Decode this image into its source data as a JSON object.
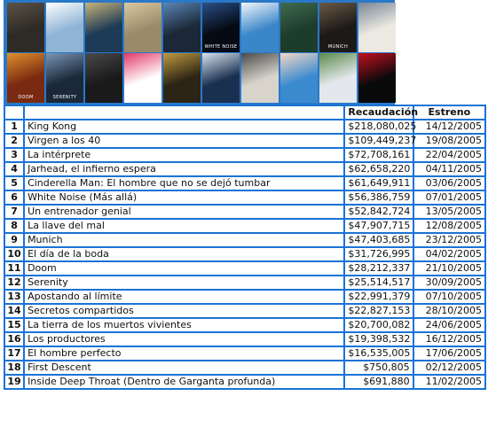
{
  "posters": [
    {
      "color": "#2e2b26",
      "accent": "#5c5246",
      "text": ""
    },
    {
      "color": "#8fb4d6",
      "accent": "#ffffff",
      "text": ""
    },
    {
      "color": "#1d3a56",
      "accent": "#c7b47a",
      "text": ""
    },
    {
      "color": "#9a8a6a",
      "accent": "#d9c9a0",
      "text": ""
    },
    {
      "color": "#1c2838",
      "accent": "#5a86b4",
      "text": ""
    },
    {
      "color": "#050a14",
      "accent": "#2b4f86",
      "text": "WHITE NOISE"
    },
    {
      "color": "#3a86c8",
      "accent": "#f2f6fa",
      "text": ""
    },
    {
      "color": "#1d3d2c",
      "accent": "#3f6a4e",
      "text": ""
    },
    {
      "color": "#1c1a18",
      "accent": "#6a5a46",
      "text": "MUNICH"
    },
    {
      "color": "#ece9e2",
      "accent": "#7a8696",
      "text": ""
    },
    {
      "color": "#7a2a10",
      "accent": "#e0902c",
      "text": "DOOM"
    },
    {
      "color": "#1a2838",
      "accent": "#7a96b8",
      "text": "SERENITY"
    },
    {
      "color": "#1a1a1a",
      "accent": "#4a4a4a",
      "text": ""
    },
    {
      "color": "#ffffff",
      "accent": "#e23a6a",
      "text": ""
    },
    {
      "color": "#2c2414",
      "accent": "#c09a40",
      "text": ""
    },
    {
      "color": "#1a3050",
      "accent": "#d8e2ee",
      "text": ""
    },
    {
      "color": "#d8d4cc",
      "accent": "#4a4a4a",
      "text": ""
    },
    {
      "color": "#3a8ad0",
      "accent": "#f4d8c8",
      "text": ""
    },
    {
      "color": "#e4e8ec",
      "accent": "#5a8a4a",
      "text": ""
    },
    {
      "color": "#0a0a0a",
      "accent": "#c21020",
      "text": ""
    }
  ],
  "table": {
    "headers": {
      "num": "",
      "title": "",
      "gross": "Recaudación",
      "release": "Estreno"
    },
    "rows": [
      {
        "num": "1",
        "title": "King Kong",
        "gross": "$218,080,025",
        "release": "14/12/2005"
      },
      {
        "num": "2",
        "title": "Virgen a los 40",
        "gross": "$109,449,237",
        "release": "19/08/2005"
      },
      {
        "num": "3",
        "title": "La intérprete",
        "gross": "$72,708,161",
        "release": "22/04/2005"
      },
      {
        "num": "4",
        "title": "Jarhead, el infierno espera",
        "gross": "$62,658,220",
        "release": "04/11/2005"
      },
      {
        "num": "5",
        "title": "Cinderella Man: El hombre que no se dejó tumbar",
        "gross": "$61,649,911",
        "release": "03/06/2005"
      },
      {
        "num": "6",
        "title": "White Noise (Más allá)",
        "gross": "$56,386,759",
        "release": "07/01/2005"
      },
      {
        "num": "7",
        "title": "Un entrenador genial",
        "gross": "$52,842,724",
        "release": "13/05/2005"
      },
      {
        "num": "8",
        "title": "La llave del mal",
        "gross": "$47,907,715",
        "release": "12/08/2005"
      },
      {
        "num": "9",
        "title": "Munich",
        "gross": "$47,403,685",
        "release": "23/12/2005"
      },
      {
        "num": "10",
        "title": "El día de la boda",
        "gross": "$31,726,995",
        "release": "04/02/2005"
      },
      {
        "num": "11",
        "title": "Doom",
        "gross": "$28,212,337",
        "release": "21/10/2005"
      },
      {
        "num": "12",
        "title": "Serenity",
        "gross": "$25,514,517",
        "release": "30/09/2005"
      },
      {
        "num": "13",
        "title": "Apostando al límite",
        "gross": "$22,991,379",
        "release": "07/10/2005"
      },
      {
        "num": "14",
        "title": "Secretos compartidos",
        "gross": "$22,827,153",
        "release": "28/10/2005"
      },
      {
        "num": "15",
        "title": "La tierra de los muertos vivientes",
        "gross": "$20,700,082",
        "release": "24/06/2005"
      },
      {
        "num": "16",
        "title": "Los productores",
        "gross": "$19,398,532",
        "release": "16/12/2005"
      },
      {
        "num": "17",
        "title": "El hombre perfecto",
        "gross": "$16,535,005",
        "release": "17/06/2005"
      },
      {
        "num": "18",
        "title": "First Descent",
        "gross": "$750,805",
        "release": "02/12/2005"
      },
      {
        "num": "19",
        "title": "Inside Deep Throat (Dentro de Garganta profunda)",
        "gross": "$691,880",
        "release": "11/02/2005"
      }
    ]
  }
}
